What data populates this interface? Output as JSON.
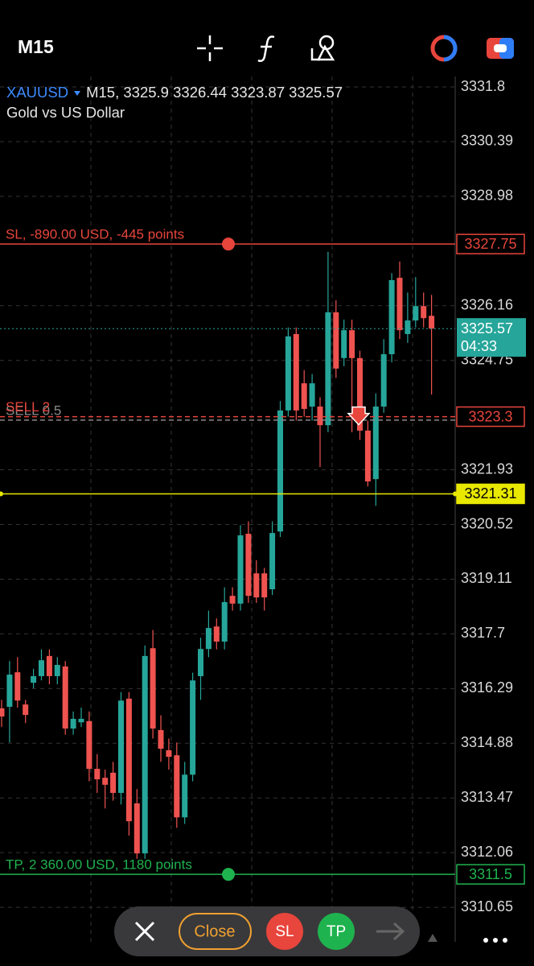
{
  "toolbar": {
    "timeframe": "M15",
    "close": "Close",
    "sl": "SL",
    "tp": "TP"
  },
  "chart_data": {
    "type": "candlestick",
    "symbol": "XAUUSD",
    "timeframe": "M15,",
    "description": "Gold vs US Dollar",
    "up_color": "#26a69a",
    "down_color": "#ef5350",
    "open": [
      3315.78,
      3315.82,
      3316.71,
      3315.88,
      3316.44,
      3316.61,
      3317.13,
      3316.61,
      3316.86,
      3315.26,
      3315.42,
      3315.45,
      3314.22,
      3313.99,
      3314.12,
      3313.6,
      3316.03,
      3313.33,
      3312.04,
      3317.33,
      3315.22,
      3314.7,
      3314.57,
      3312.97,
      3314.07,
      3316.61,
      3317.31,
      3317.89,
      3317.5,
      3318.68,
      3318.48,
      3320.28,
      3319.26,
      3319.26,
      3318.85,
      3320.34,
      3323.46,
      3325.43,
      3324.16,
      3323.56,
      3323.56,
      3323.08,
      3325.99,
      3324.81,
      3325.53,
      3324.81,
      3322.94,
      3321.69,
      3323.56,
      3324.91,
      3326.88,
      3325.43,
      3325.78,
      3326.15,
      3325.9
    ],
    "high": [
      3316.0,
      3317.0,
      3317.1,
      3316.0,
      3316.8,
      3317.3,
      3317.3,
      3317.1,
      3317.0,
      3315.7,
      3315.8,
      3315.7,
      3314.6,
      3314.2,
      3314.4,
      3316.2,
      3316.2,
      3313.7,
      3317.4,
      3317.8,
      3315.6,
      3315.0,
      3314.9,
      3314.4,
      3316.7,
      3317.6,
      3318.3,
      3318.1,
      3318.9,
      3318.9,
      3320.5,
      3320.6,
      3319.6,
      3319.4,
      3320.6,
      3323.7,
      3325.6,
      3325.6,
      3324.5,
      3324.4,
      3323.8,
      3327.55,
      3326.3,
      3325.8,
      3325.8,
      3325.0,
      3323.2,
      3323.9,
      3325.3,
      3327.0,
      3327.3,
      3326.5,
      3326.9,
      3326.5,
      3326.44
    ],
    "low": [
      3315.3,
      3314.9,
      3315.8,
      3315.4,
      3316.3,
      3316.5,
      3316.4,
      3316.4,
      3315.1,
      3315.1,
      3315.3,
      3313.9,
      3313.6,
      3313.2,
      3313.4,
      3313.3,
      3312.5,
      3311.9,
      3311.9,
      3315.0,
      3314.4,
      3314.2,
      3312.7,
      3312.8,
      3313.9,
      3316.0,
      3317.1,
      3317.3,
      3317.3,
      3318.3,
      3318.3,
      3318.5,
      3318.5,
      3318.3,
      3318.7,
      3320.2,
      3323.3,
      3323.2,
      3323.3,
      3323.2,
      3322.0,
      3322.9,
      3324.3,
      3324.6,
      3322.9,
      3322.7,
      3321.5,
      3321.0,
      3323.4,
      3324.7,
      3325.3,
      3325.2,
      3325.6,
      3325.6,
      3323.87
    ],
    "close": [
      3315.57,
      3316.65,
      3315.98,
      3315.61,
      3316.61,
      3317.02,
      3316.61,
      3316.9,
      3315.26,
      3315.51,
      3315.51,
      3314.22,
      3313.95,
      3313.81,
      3313.6,
      3315.98,
      3312.87,
      3312.04,
      3317.13,
      3315.26,
      3314.74,
      3314.53,
      3312.97,
      3314.07,
      3316.5,
      3317.31,
      3317.85,
      3317.5,
      3318.52,
      3318.48,
      3320.24,
      3318.68,
      3318.64,
      3318.64,
      3320.3,
      3323.46,
      3325.37,
      3323.46,
      3323.5,
      3324.16,
      3323.08,
      3325.99,
      3324.54,
      3325.53,
      3324.81,
      3322.94,
      3321.63,
      3323.56,
      3324.91,
      3326.82,
      3325.53,
      3325.78,
      3326.15,
      3325.84,
      3325.57
    ],
    "ylim": [
      3309.76,
      3332.07
    ],
    "yticks": [
      3331.8,
      3330.39,
      3328.98,
      3326.16,
      3324.75,
      3321.93,
      3320.52,
      3319.11,
      3317.7,
      3316.29,
      3314.88,
      3313.47,
      3312.06,
      3310.65
    ],
    "grid": true,
    "countdown": "04:33",
    "bid_color": "#26a69a",
    "levels": [
      {
        "label": "SL, -890.00 USD, -445 points",
        "value": 3327.75,
        "color": "#e8453c",
        "tag": "outline"
      },
      {
        "label": "SELL 0.5",
        "value": 3323.21,
        "color": "#8a8a8a",
        "dashed": true
      },
      {
        "label": "SELL 2",
        "value": 3323.3,
        "color": "#e8453c",
        "dashed": true,
        "tag": "outline"
      },
      {
        "value": 3321.31,
        "color": "#e8e800",
        "tag": "filled"
      },
      {
        "label": "TP, 2 360.00 USD, 1180 points",
        "value": 3311.5,
        "color": "#1fb34f",
        "tag": "outline"
      }
    ]
  }
}
